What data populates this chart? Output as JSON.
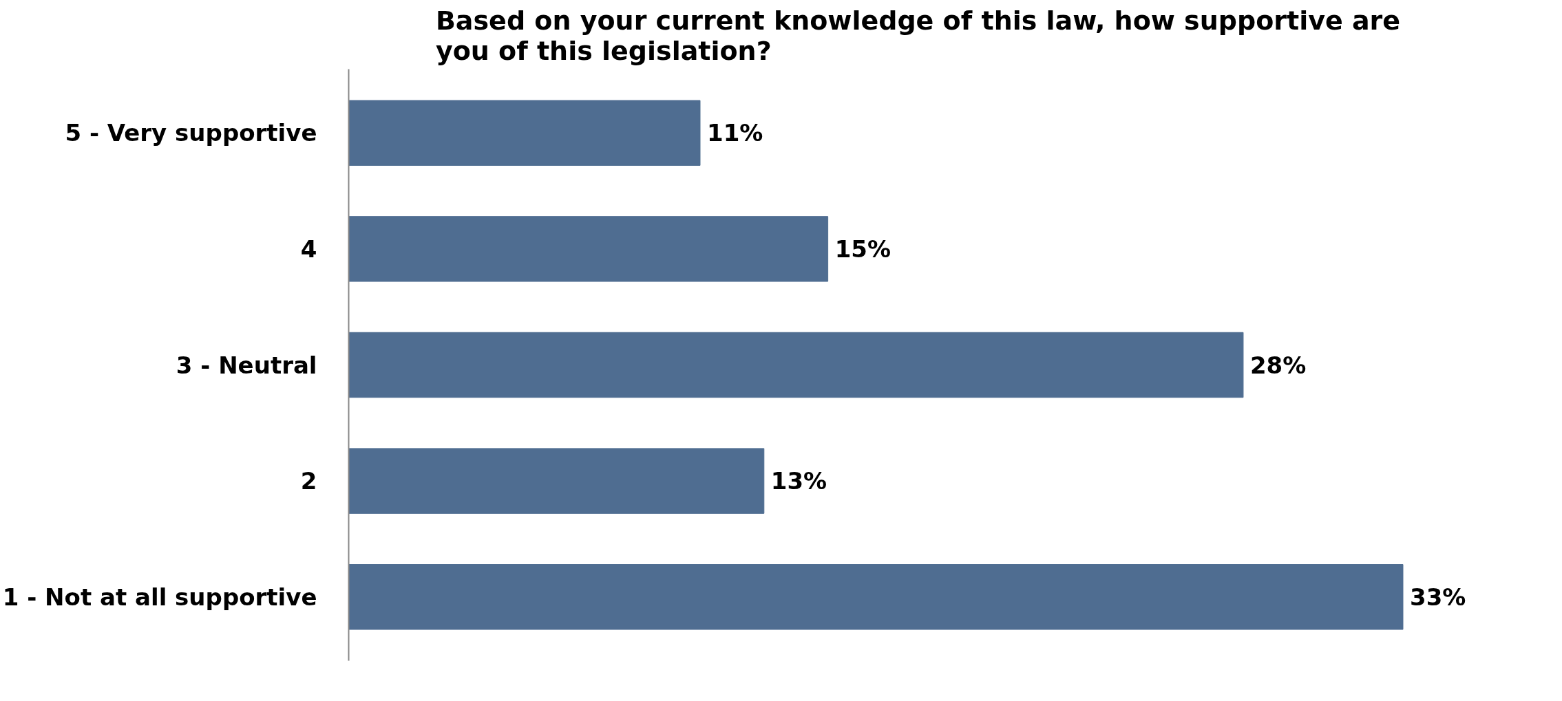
{
  "chart_data": {
    "type": "bar",
    "orientation": "horizontal",
    "title": "Based on your current knowledge of this law, how supportive are\nyou of this legislation?",
    "categories": [
      "5 - Very supportive",
      "4",
      "3 - Neutral",
      "2",
      "1 - Not at all supportive"
    ],
    "values": [
      11,
      15,
      28,
      13,
      33
    ],
    "value_labels": [
      "11%",
      "15%",
      "28%",
      "13%",
      "33%"
    ],
    "color": "#4f6d91",
    "grid": false,
    "tick_labels": "y"
  }
}
